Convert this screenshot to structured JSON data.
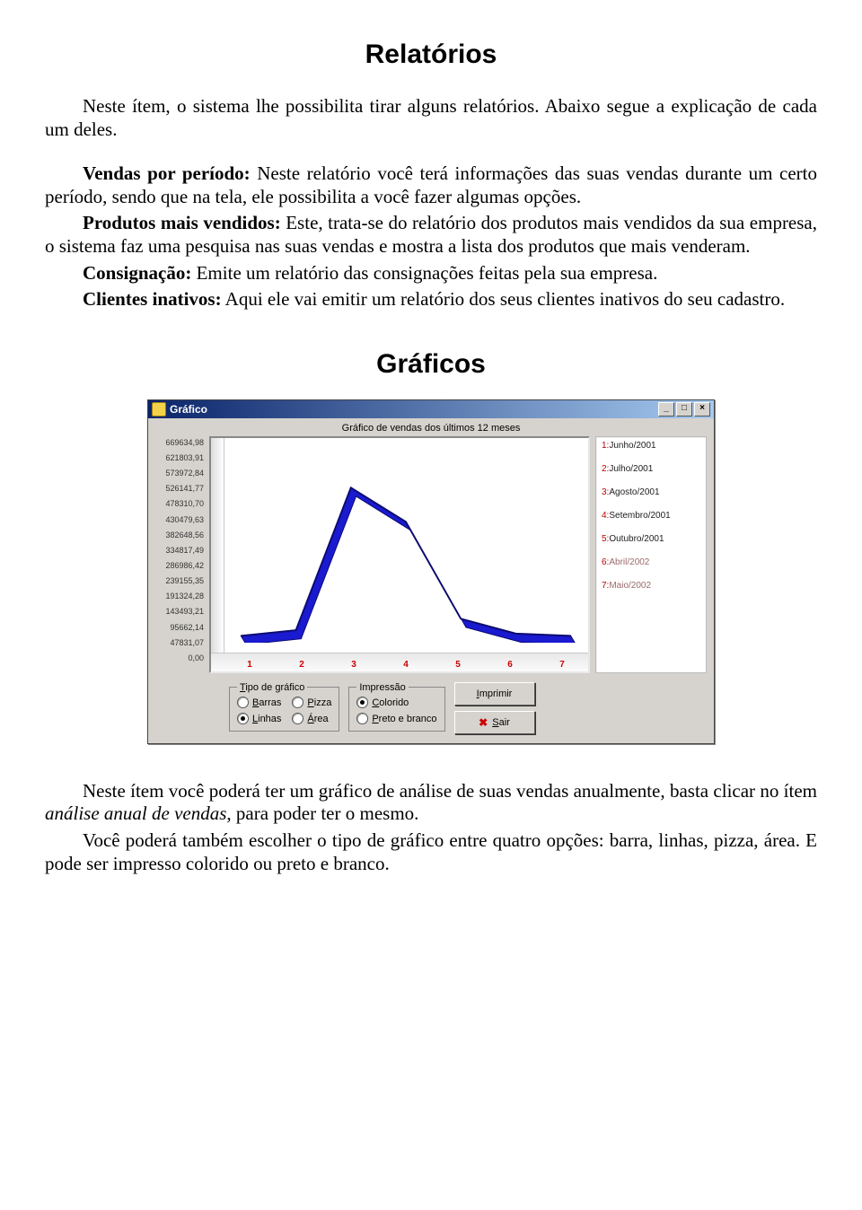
{
  "headings": {
    "h1": "Relatórios",
    "h2": "Gráficos"
  },
  "paragraphs": {
    "intro": "Neste ítem, o sistema lhe possibilita tirar alguns relatórios. Abaixo segue a explicação de cada um deles.",
    "p1_label": "Vendas por período:",
    "p1_text": " Neste relatório você terá informações das suas vendas durante um certo período, sendo que na tela, ele possibilita a você fazer algumas opções.",
    "p2_label": "Produtos mais vendidos:",
    "p2_text": " Este, trata-se do relatório dos produtos mais vendidos da sua empresa, o sistema faz uma pesquisa nas suas vendas e mostra a lista dos produtos que mais venderam.",
    "p3_label": "Consignação:",
    "p3_text": " Emite um relatório das consignações feitas pela sua empresa.",
    "p4_label": "Clientes inativos:",
    "p4_text": " Aqui ele vai emitir um relatório dos seus clientes inativos do seu cadastro.",
    "footer1a": "Neste ítem você poderá ter um gráfico de análise de suas vendas anualmente, basta clicar no ítem ",
    "footer1b": "análise anual de vendas",
    "footer1c": ", para poder ter o mesmo.",
    "footer2": "Você poderá também escolher o tipo de gráfico entre quatro opções: barra, linhas, pizza, área. E pode ser impresso colorido ou preto e branco."
  },
  "window": {
    "title": "Gráfico",
    "chart_title": "Gráfico de vendas dos últimos 12 meses",
    "y_ticks": [
      "669634,98",
      "621803,91",
      "573972,84",
      "526141,77",
      "478310,70",
      "430479,63",
      "382648,56",
      "334817,49",
      "286986,42",
      "239155,35",
      "191324,28",
      "143493,21",
      "95662,14",
      "47831,07",
      "0,00"
    ],
    "x_ticks": [
      "1",
      "2",
      "3",
      "4",
      "5",
      "6",
      "7"
    ],
    "legend": [
      {
        "n": "1",
        "label": "Junho/2001"
      },
      {
        "n": "2",
        "label": "Julho/2001"
      },
      {
        "n": "3",
        "label": "Agosto/2001"
      },
      {
        "n": "4",
        "label": "Setembro/2001"
      },
      {
        "n": "5",
        "label": "Outubro/2001"
      },
      {
        "n": "6",
        "label": "Abril/2002"
      },
      {
        "n": "7",
        "label": "Maio/2002"
      }
    ],
    "type_group": {
      "legend": "Tipo de gráfico",
      "options": [
        {
          "key": "T",
          "rest": "ipo de gráfico"
        },
        {
          "label_u": "B",
          "label_rest": "arras",
          "checked": false
        },
        {
          "label_u": "P",
          "label_rest": "izza",
          "checked": false
        },
        {
          "label_u": "L",
          "label_rest": "inhas",
          "checked": true
        },
        {
          "label_u": "Á",
          "label_rest": "rea",
          "checked": false
        }
      ]
    },
    "print_group": {
      "legend": "Impressão",
      "options": [
        {
          "label_u": "C",
          "label_rest": "olorido",
          "checked": true
        },
        {
          "label_u": "P",
          "label_rest": "reto e branco",
          "checked": false
        }
      ]
    },
    "buttons": {
      "print_u": "I",
      "print_rest": "mprimir",
      "exit_u": "S",
      "exit_rest": "air"
    },
    "chart": {
      "series_color": "#1a1ad0",
      "series_shadow": "#0b0b70",
      "points": [
        {
          "x": 1,
          "y": 0
        },
        {
          "x": 2,
          "y": 20000
        },
        {
          "x": 3,
          "y": 520000
        },
        {
          "x": 4,
          "y": 400000
        },
        {
          "x": 5,
          "y": 60000
        },
        {
          "x": 6,
          "y": 8000
        },
        {
          "x": 7,
          "y": 0
        }
      ],
      "y_max": 669634.98
    }
  }
}
